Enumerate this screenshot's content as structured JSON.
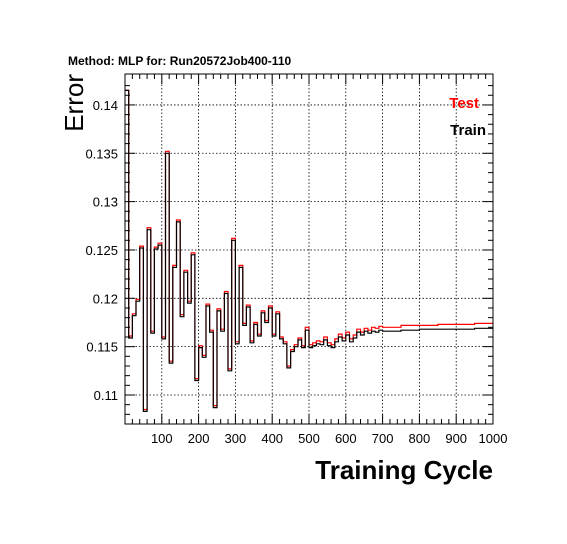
{
  "chart_data": {
    "type": "line",
    "title": "Method: MLP for: Run20572Job400-110",
    "xlabel": "Training Cycle",
    "ylabel": "Error",
    "xlim": [
      0,
      1000
    ],
    "ylim": [
      0.107,
      0.1432
    ],
    "grid": true,
    "legend_position": "top-right",
    "x_ticks": [
      100,
      200,
      300,
      400,
      500,
      600,
      700,
      800,
      900,
      1000
    ],
    "y_ticks": [
      0.11,
      0.115,
      0.12,
      0.125,
      0.13,
      0.135,
      0.14
    ],
    "y_tick_labels": [
      "0.11",
      "0.115",
      "0.12",
      "0.125",
      "0.13",
      "0.135",
      "0.14"
    ],
    "x": [
      0,
      10,
      20,
      30,
      40,
      50,
      60,
      70,
      80,
      90,
      100,
      110,
      120,
      130,
      140,
      150,
      160,
      170,
      180,
      190,
      200,
      210,
      220,
      230,
      240,
      250,
      260,
      270,
      280,
      290,
      300,
      310,
      320,
      330,
      340,
      350,
      360,
      370,
      380,
      390,
      400,
      410,
      420,
      430,
      440,
      450,
      460,
      470,
      480,
      490,
      500,
      510,
      520,
      530,
      540,
      550,
      560,
      570,
      580,
      590,
      600,
      610,
      620,
      630,
      640,
      650,
      660,
      670,
      680,
      690,
      700,
      750,
      800,
      850,
      900,
      950,
      1000
    ],
    "series": [
      {
        "name": "Test",
        "color": "#ff0000",
        "values": [
          0.1415,
          0.1161,
          0.1184,
          0.1199,
          0.1254,
          0.1085,
          0.1273,
          0.1166,
          0.1253,
          0.1257,
          0.116,
          0.1352,
          0.1135,
          0.1234,
          0.1281,
          0.1183,
          0.1229,
          0.1197,
          0.1247,
          0.1117,
          0.1151,
          0.1141,
          0.1194,
          0.1167,
          0.1089,
          0.1189,
          0.1168,
          0.1207,
          0.1127,
          0.1262,
          0.1155,
          0.1234,
          0.1174,
          0.1193,
          0.1156,
          0.1175,
          0.1163,
          0.1187,
          0.1177,
          0.1192,
          0.1163,
          0.1186,
          0.116,
          0.1155,
          0.113,
          0.1147,
          0.1152,
          0.1159,
          0.1151,
          0.117,
          0.1152,
          0.1154,
          0.1156,
          0.1155,
          0.116,
          0.1154,
          0.1152,
          0.1158,
          0.1163,
          0.1159,
          0.1165,
          0.1158,
          0.1162,
          0.1168,
          0.1165,
          0.1169,
          0.1167,
          0.117,
          0.1169,
          0.1171,
          0.117,
          0.1172,
          0.1172,
          0.1173,
          0.1173,
          0.1174,
          0.1174
        ]
      },
      {
        "name": "Train",
        "color": "#000000",
        "values": [
          0.1415,
          0.1159,
          0.1182,
          0.1197,
          0.1252,
          0.1083,
          0.1271,
          0.1164,
          0.1251,
          0.1255,
          0.1158,
          0.135,
          0.1133,
          0.1232,
          0.1279,
          0.1181,
          0.1227,
          0.1195,
          0.1245,
          0.1115,
          0.1149,
          0.1139,
          0.1192,
          0.1165,
          0.1087,
          0.1187,
          0.1166,
          0.1205,
          0.1125,
          0.126,
          0.1153,
          0.1232,
          0.1172,
          0.1191,
          0.1154,
          0.1173,
          0.1161,
          0.1185,
          0.1175,
          0.119,
          0.1161,
          0.1184,
          0.1158,
          0.1153,
          0.1128,
          0.1145,
          0.115,
          0.1157,
          0.1149,
          0.1167,
          0.1149,
          0.1151,
          0.1153,
          0.1152,
          0.1157,
          0.1151,
          0.1149,
          0.1155,
          0.116,
          0.1156,
          0.1162,
          0.1155,
          0.1159,
          0.1165,
          0.1162,
          0.1166,
          0.1164,
          0.1166,
          0.1165,
          0.1167,
          0.1166,
          0.1167,
          0.1168,
          0.1168,
          0.1168,
          0.1169,
          0.1169
        ]
      }
    ]
  }
}
